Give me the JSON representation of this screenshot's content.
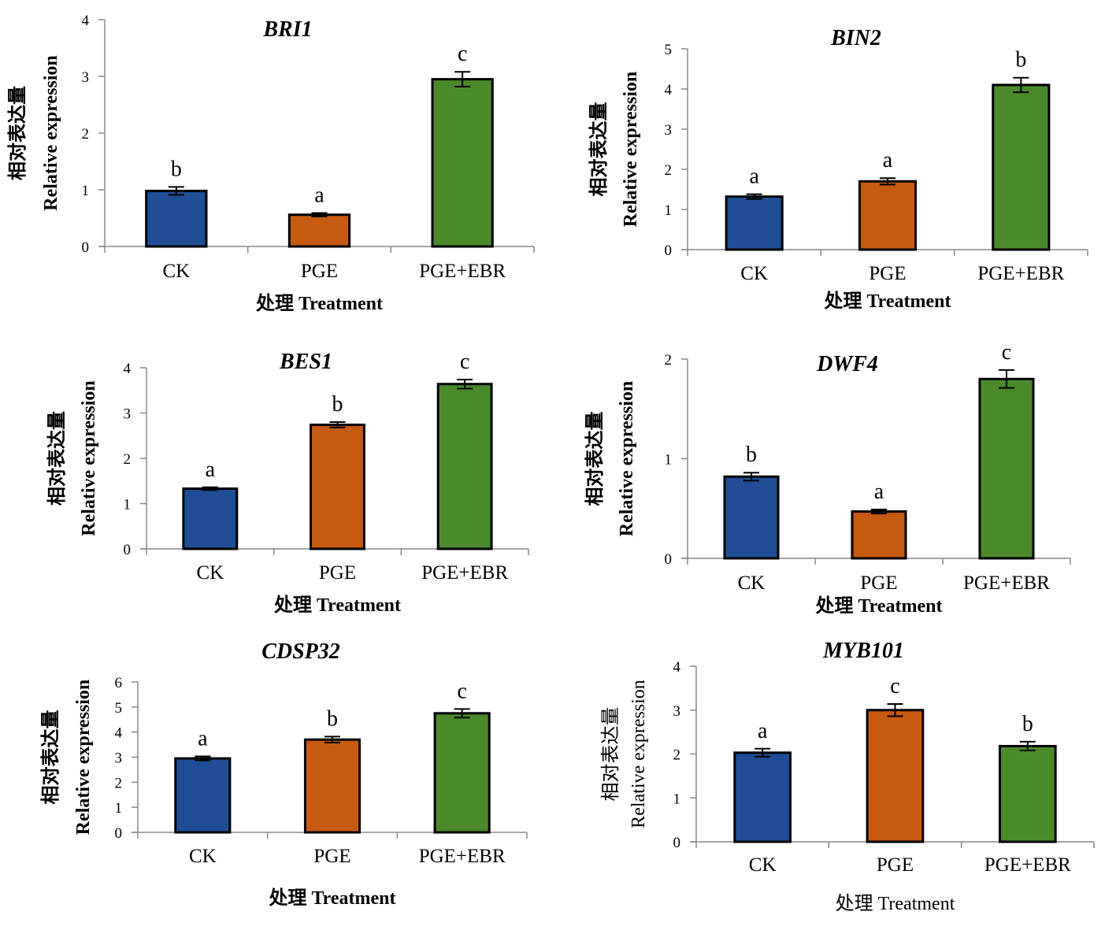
{
  "chart_data": [
    {
      "type": "bar",
      "title": "BRI1",
      "ylabel_cn": "相对表达量",
      "ylabel": "Relative expression",
      "xlabel": "处理 Treatment",
      "categories": [
        "CK",
        "PGE",
        "PGE+EBR"
      ],
      "values": [
        0.98,
        0.56,
        2.95
      ],
      "errors": [
        0.07,
        0.03,
        0.13
      ],
      "significance": [
        "b",
        "a",
        "c"
      ],
      "ylim": [
        0,
        4
      ],
      "yticks": [
        "0",
        "1",
        "2",
        "3",
        "4"
      ],
      "bold_axis_titles": true
    },
    {
      "type": "bar",
      "title": "BIN2",
      "ylabel_cn": "相对表达量",
      "ylabel": "Relative expression",
      "xlabel": "处理 Treatment",
      "categories": [
        "CK",
        "PGE",
        "PGE+EBR"
      ],
      "values": [
        1.32,
        1.7,
        4.1
      ],
      "errors": [
        0.06,
        0.08,
        0.18
      ],
      "significance": [
        "a",
        "a",
        "b"
      ],
      "ylim": [
        0,
        5
      ],
      "yticks": [
        "0",
        "1",
        "2",
        "3",
        "4",
        "5"
      ],
      "bold_axis_titles": true
    },
    {
      "type": "bar",
      "title": "BES1",
      "ylabel_cn": "相对表达量",
      "ylabel": "Relative expression",
      "xlabel": "处理 Treatment",
      "categories": [
        "CK",
        "PGE",
        "PGE+EBR"
      ],
      "values": [
        1.33,
        2.74,
        3.64
      ],
      "errors": [
        0.03,
        0.06,
        0.1
      ],
      "significance": [
        "a",
        "b",
        "c"
      ],
      "ylim": [
        0,
        4
      ],
      "yticks": [
        "0",
        "1",
        "2",
        "3",
        "4"
      ],
      "bold_axis_titles": true
    },
    {
      "type": "bar",
      "title": "DWF4",
      "ylabel_cn": "相对表达量",
      "ylabel": "Relative expression",
      "xlabel": "处理 Treatment",
      "categories": [
        "CK",
        "PGE",
        "PGE+EBR"
      ],
      "values": [
        0.82,
        0.47,
        1.8
      ],
      "errors": [
        0.04,
        0.02,
        0.09
      ],
      "significance": [
        "b",
        "a",
        "c"
      ],
      "ylim": [
        0,
        2
      ],
      "yticks": [
        "0",
        "1",
        "2"
      ],
      "bold_axis_titles": true
    },
    {
      "type": "bar",
      "title": "CDSP32",
      "ylabel_cn": "相对表达量",
      "ylabel": "Relative expression",
      "xlabel": "处理 Treatment",
      "categories": [
        "CK",
        "PGE",
        "PGE+EBR"
      ],
      "values": [
        2.95,
        3.7,
        4.75
      ],
      "errors": [
        0.08,
        0.12,
        0.17
      ],
      "significance": [
        "a",
        "b",
        "c"
      ],
      "ylim": [
        0,
        6
      ],
      "yticks": [
        "0",
        "1",
        "2",
        "3",
        "4",
        "5",
        "6"
      ],
      "bold_axis_titles": true
    },
    {
      "type": "bar",
      "title": "MYB101",
      "ylabel_cn": "相对表达量",
      "ylabel": "Relative expression",
      "xlabel": "处理 Treatment",
      "categories": [
        "CK",
        "PGE",
        "PGE+EBR"
      ],
      "values": [
        2.03,
        3.0,
        2.18
      ],
      "errors": [
        0.09,
        0.14,
        0.1
      ],
      "significance": [
        "a",
        "c",
        "b"
      ],
      "ylim": [
        0,
        4
      ],
      "yticks": [
        "0",
        "1",
        "2",
        "3",
        "4"
      ],
      "bold_axis_titles": false
    }
  ],
  "colors": {
    "CK": "#1f4e96",
    "PGE": "#c65a11",
    "PGE+EBR": "#4a8a2b"
  }
}
